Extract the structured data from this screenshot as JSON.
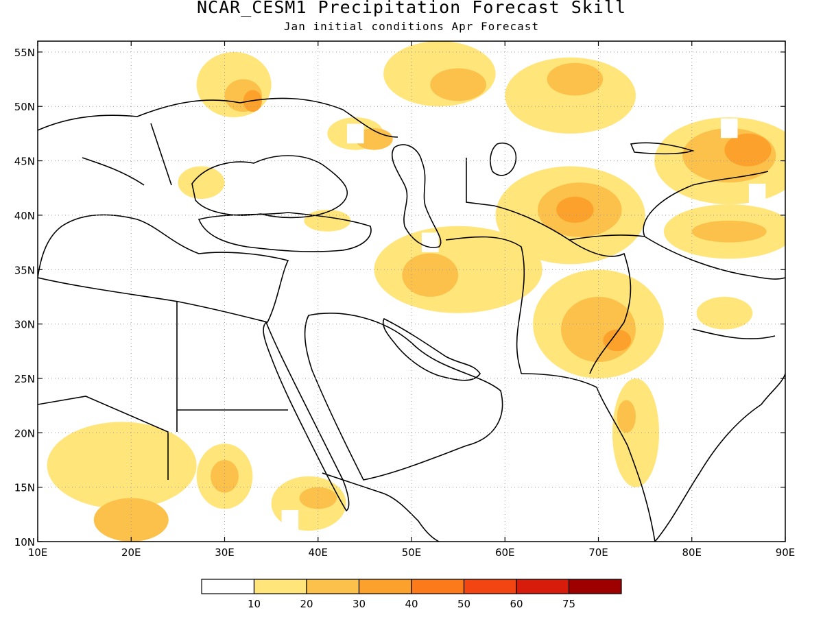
{
  "title": "NCAR_CESM1 Precipitation Forecast Skill",
  "subtitle": "Jan initial conditions  Apr Forecast",
  "map": {
    "lon_range": [
      10,
      90
    ],
    "lat_range": [
      10,
      56
    ],
    "lon_ticks": [
      {
        "value": 10,
        "label": "10E"
      },
      {
        "value": 20,
        "label": "20E"
      },
      {
        "value": 30,
        "label": "30E"
      },
      {
        "value": 40,
        "label": "40E"
      },
      {
        "value": 50,
        "label": "50E"
      },
      {
        "value": 60,
        "label": "60E"
      },
      {
        "value": 70,
        "label": "70E"
      },
      {
        "value": 80,
        "label": "80E"
      },
      {
        "value": 90,
        "label": "90E"
      }
    ],
    "lat_ticks": [
      {
        "value": 10,
        "label": "10N"
      },
      {
        "value": 15,
        "label": "15N"
      },
      {
        "value": 20,
        "label": "20N"
      },
      {
        "value": 25,
        "label": "25N"
      },
      {
        "value": 30,
        "label": "30N"
      },
      {
        "value": 35,
        "label": "35N"
      },
      {
        "value": 40,
        "label": "40N"
      },
      {
        "value": 45,
        "label": "45N"
      },
      {
        "value": 50,
        "label": "50N"
      },
      {
        "value": 55,
        "label": "55N"
      }
    ],
    "gridlines": "dotted",
    "skill_regions": [
      {
        "lon": 31,
        "lat": 52,
        "rx": 4,
        "ry": 3,
        "level": 1
      },
      {
        "lon": 32,
        "lat": 51,
        "rx": 2,
        "ry": 1.5,
        "level": 2
      },
      {
        "lon": 33,
        "lat": 50.5,
        "rx": 1,
        "ry": 1,
        "level": 3
      },
      {
        "lon": 27.5,
        "lat": 43,
        "rx": 2.5,
        "ry": 1.5,
        "level": 1
      },
      {
        "lon": 44,
        "lat": 47.5,
        "rx": 3,
        "ry": 1.5,
        "level": 1
      },
      {
        "lon": 46,
        "lat": 47,
        "rx": 2,
        "ry": 1,
        "level": 2
      },
      {
        "lon": 53,
        "lat": 53,
        "rx": 6,
        "ry": 3,
        "level": 1
      },
      {
        "lon": 55,
        "lat": 52,
        "rx": 3,
        "ry": 1.5,
        "level": 2
      },
      {
        "lon": 67,
        "lat": 51,
        "rx": 7,
        "ry": 3.5,
        "level": 1
      },
      {
        "lon": 67.5,
        "lat": 52.5,
        "rx": 3,
        "ry": 1.5,
        "level": 2
      },
      {
        "lon": 55,
        "lat": 35,
        "rx": 9,
        "ry": 4,
        "level": 1
      },
      {
        "lon": 52,
        "lat": 34.5,
        "rx": 3,
        "ry": 2,
        "level": 2
      },
      {
        "lon": 67,
        "lat": 40,
        "rx": 8,
        "ry": 4.5,
        "level": 1
      },
      {
        "lon": 68,
        "lat": 40.5,
        "rx": 4.5,
        "ry": 2.5,
        "level": 2
      },
      {
        "lon": 67.5,
        "lat": 40.5,
        "rx": 2,
        "ry": 1.2,
        "level": 3
      },
      {
        "lon": 84,
        "lat": 45,
        "rx": 8,
        "ry": 4,
        "level": 1
      },
      {
        "lon": 84,
        "lat": 45.5,
        "rx": 5,
        "ry": 2.5,
        "level": 2
      },
      {
        "lon": 86,
        "lat": 46,
        "rx": 2.5,
        "ry": 1.5,
        "level": 3
      },
      {
        "lon": 84,
        "lat": 38.5,
        "rx": 7,
        "ry": 2.5,
        "level": 1
      },
      {
        "lon": 84,
        "lat": 38.5,
        "rx": 4,
        "ry": 1,
        "level": 2
      },
      {
        "lon": 70,
        "lat": 30,
        "rx": 7,
        "ry": 5,
        "level": 1
      },
      {
        "lon": 70,
        "lat": 29.5,
        "rx": 4,
        "ry": 3,
        "level": 2
      },
      {
        "lon": 72,
        "lat": 28.5,
        "rx": 1.5,
        "ry": 1,
        "level": 3
      },
      {
        "lon": 74,
        "lat": 20,
        "rx": 2.5,
        "ry": 5,
        "level": 1
      },
      {
        "lon": 73,
        "lat": 21.5,
        "rx": 1,
        "ry": 1.5,
        "level": 2
      },
      {
        "lon": 83.5,
        "lat": 31,
        "rx": 3,
        "ry": 1.5,
        "level": 1
      },
      {
        "lon": 19,
        "lat": 17,
        "rx": 8,
        "ry": 4,
        "level": 1
      },
      {
        "lon": 30,
        "lat": 16,
        "rx": 3,
        "ry": 3,
        "level": 1
      },
      {
        "lon": 30,
        "lat": 16,
        "rx": 1.5,
        "ry": 1.5,
        "level": 2
      },
      {
        "lon": 20,
        "lat": 12,
        "rx": 4,
        "ry": 2,
        "level": 2
      },
      {
        "lon": 39,
        "lat": 13.5,
        "rx": 4,
        "ry": 2.5,
        "level": 1
      },
      {
        "lon": 40,
        "lat": 14,
        "rx": 2,
        "ry": 1,
        "level": 2
      },
      {
        "lon": 41,
        "lat": 39.5,
        "rx": 2.5,
        "ry": 1,
        "level": 1
      }
    ],
    "masked_cells": [
      {
        "lon": 44,
        "lat": 47.5
      },
      {
        "lon": 59.5,
        "lat": 45.5
      },
      {
        "lon": 73.5,
        "lat": 45
      },
      {
        "lon": 84,
        "lat": 48
      },
      {
        "lon": 87,
        "lat": 42
      },
      {
        "lon": 37,
        "lat": 12
      },
      {
        "lon": 52,
        "lat": 37.5
      }
    ]
  },
  "colorbar": {
    "colors": [
      "#ffffff",
      "#ffe57a",
      "#fcc14a",
      "#fca12c",
      "#fc7a1a",
      "#f24512",
      "#d81c0c",
      "#9e0000"
    ],
    "labels": [
      "10",
      "20",
      "30",
      "40",
      "50",
      "60",
      "75"
    ]
  }
}
